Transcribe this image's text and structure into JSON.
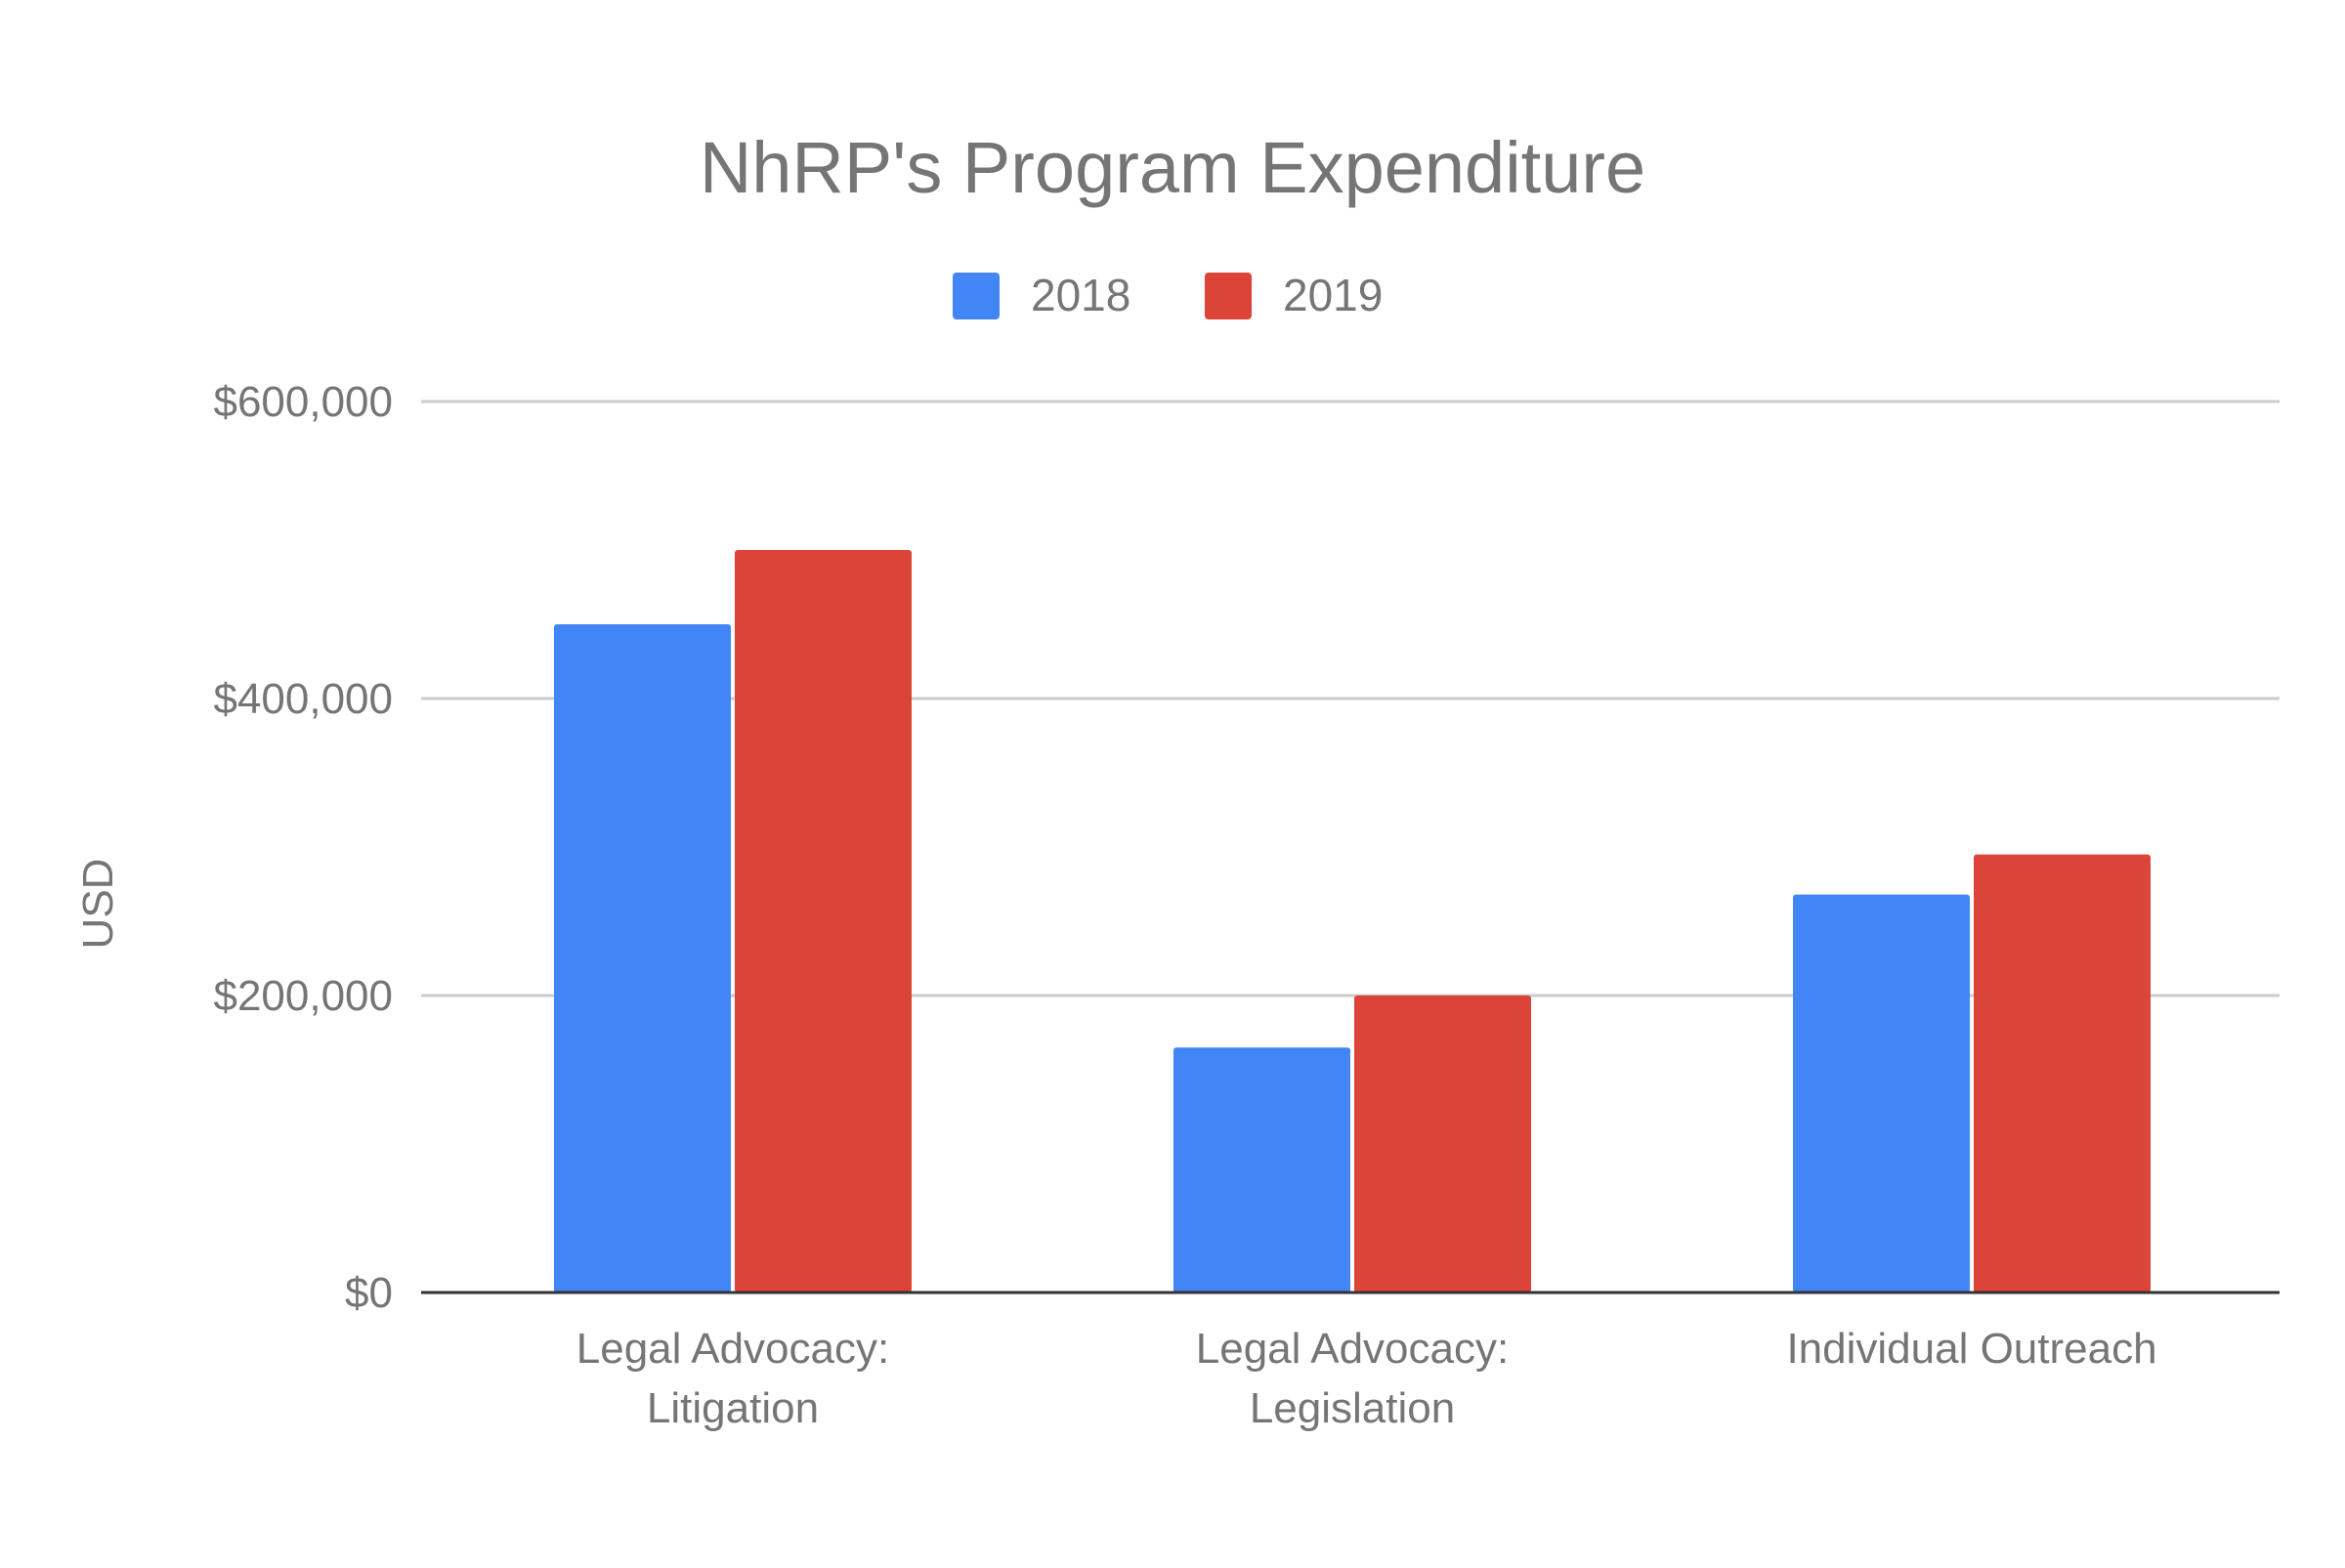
{
  "chart_data": {
    "type": "bar",
    "title": "NhRP's Program Expenditure",
    "ylabel": "USD",
    "xlabel": "",
    "categories": [
      [
        "Legal Advocacy:",
        "Litigation"
      ],
      [
        "Legal Advocacy:",
        "Legislation"
      ],
      [
        "Individual Outreach"
      ]
    ],
    "series": [
      {
        "name": "2018",
        "color": "#4285f4",
        "values": [
          450000,
          165000,
          268000
        ]
      },
      {
        "name": "2019",
        "color": "#db4437",
        "values": [
          500000,
          200000,
          295000
        ]
      }
    ],
    "ylim": [
      0,
      600000
    ],
    "yticks": [
      {
        "value": 0,
        "label": "$0"
      },
      {
        "value": 200000,
        "label": "$200,000"
      },
      {
        "value": 400000,
        "label": "$400,000"
      },
      {
        "value": 600000,
        "label": "$600,000"
      }
    ],
    "grid": true,
    "legend_position": "top-center"
  },
  "colors": {
    "text": "#757575",
    "gridline": "#cccccc",
    "baseline": "#333333"
  }
}
